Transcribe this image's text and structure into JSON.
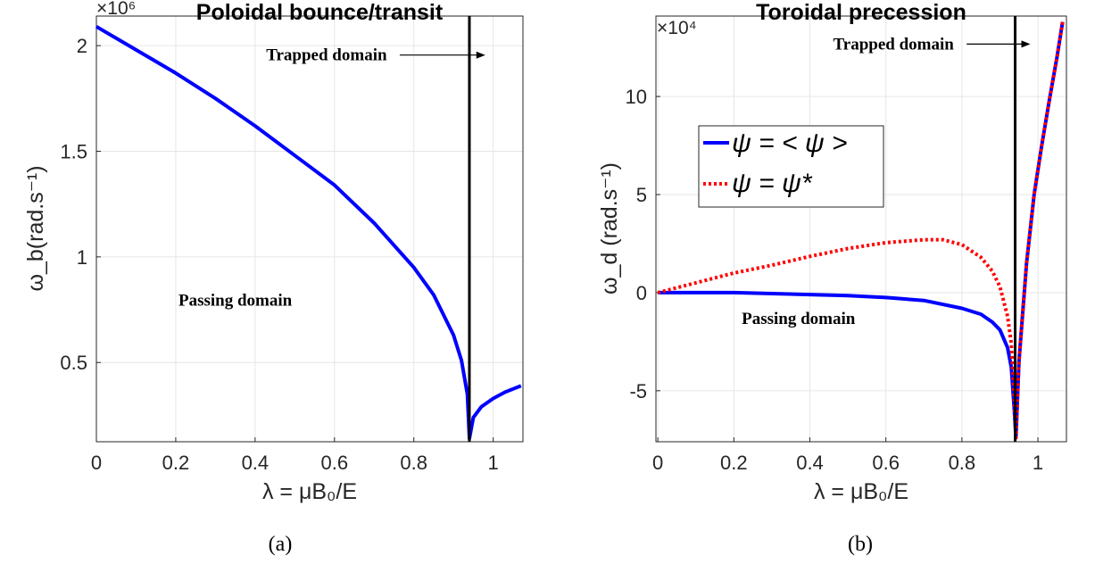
{
  "chart_data": [
    {
      "type": "line",
      "title": "Poloidal bounce/transit",
      "exponent": "×10⁶",
      "xlabel": "λ = μB₀/E",
      "ylabel": "ω_b(rad.s⁻¹)",
      "xlim": [
        0,
        1.075
      ],
      "ylim": [
        0.125,
        2.14
      ],
      "xticks": [
        0,
        0.2,
        0.4,
        0.6,
        0.8,
        1
      ],
      "xtick_labels": [
        "0",
        "0.2",
        "0.4",
        "0.6",
        "0.8",
        "1"
      ],
      "yticks": [
        0.5,
        1,
        1.5,
        2
      ],
      "ytick_labels": [
        "0.5",
        "1",
        "1.5",
        "2"
      ],
      "grid": true,
      "boundary_x": 0.94,
      "annotations": [
        {
          "text": "Trapped domain",
          "x": 0.58,
          "y": 1.93,
          "arrow_to_x": 0.98
        },
        {
          "text": "Passing domain",
          "x": 0.35,
          "y": 0.77
        }
      ],
      "series": [
        {
          "color": "#0000ff",
          "style": "solid",
          "x": [
            0,
            0.1,
            0.2,
            0.3,
            0.4,
            0.5,
            0.6,
            0.7,
            0.8,
            0.85,
            0.9,
            0.92,
            0.935,
            0.94,
            0.95,
            0.97,
            1.0,
            1.03,
            1.07
          ],
          "y": [
            2.09,
            1.98,
            1.87,
            1.75,
            1.62,
            1.48,
            1.34,
            1.16,
            0.95,
            0.82,
            0.63,
            0.51,
            0.35,
            0.14,
            0.24,
            0.29,
            0.33,
            0.36,
            0.39
          ]
        }
      ],
      "caption": "(a)"
    },
    {
      "type": "line",
      "title": "Toroidal precession",
      "exponent": "×10⁴",
      "xlabel": "λ = μB₀/E",
      "ylabel": "ω_d (rad.s⁻¹)",
      "xlim": [
        -0.005,
        1.075
      ],
      "ylim": [
        -7.6,
        14.1
      ],
      "xticks": [
        0,
        0.2,
        0.4,
        0.6,
        0.8,
        1
      ],
      "xtick_labels": [
        "0",
        "0.2",
        "0.4",
        "0.6",
        "0.8",
        "1"
      ],
      "yticks": [
        -5,
        0,
        5,
        10
      ],
      "ytick_labels": [
        "-5",
        "0",
        "5",
        "10"
      ],
      "grid": true,
      "boundary_x": 0.94,
      "legend": "upper-left",
      "annotations": [
        {
          "text": "Trapped domain",
          "x": 0.62,
          "y": 12.4,
          "arrow_to_x": 0.98
        },
        {
          "text": "Passing domain",
          "x": 0.37,
          "y": -1.6
        }
      ],
      "series": [
        {
          "name": "ψ = < ψ >",
          "color": "#0000ff",
          "style": "solid",
          "x": [
            0,
            0.2,
            0.4,
            0.5,
            0.6,
            0.7,
            0.8,
            0.85,
            0.88,
            0.9,
            0.92,
            0.93,
            0.938,
            0.942,
            0.95,
            0.97,
            0.99,
            1.01,
            1.03,
            1.05,
            1.065
          ],
          "y": [
            0,
            0,
            -0.1,
            -0.15,
            -0.25,
            -0.4,
            -0.8,
            -1.1,
            -1.5,
            -1.9,
            -2.8,
            -3.8,
            -6.0,
            -7.4,
            -3.5,
            1.5,
            5.0,
            7.5,
            9.8,
            12.0,
            13.8
          ]
        },
        {
          "name": "ψ = ψ*",
          "color": "#ff0000",
          "style": "dotted",
          "x": [
            0,
            0.1,
            0.2,
            0.3,
            0.4,
            0.5,
            0.6,
            0.7,
            0.75,
            0.8,
            0.85,
            0.88,
            0.9,
            0.92,
            0.93,
            0.938,
            0.942,
            0.95,
            0.97,
            0.99,
            1.01,
            1.03,
            1.05,
            1.065
          ],
          "y": [
            0,
            0.5,
            1.0,
            1.4,
            1.85,
            2.25,
            2.55,
            2.7,
            2.7,
            2.45,
            1.8,
            1.1,
            0.3,
            -1.2,
            -2.6,
            -5.5,
            -7.4,
            -3.5,
            1.5,
            5.0,
            7.5,
            9.8,
            12.0,
            13.8
          ]
        }
      ],
      "caption": "(b)"
    }
  ]
}
